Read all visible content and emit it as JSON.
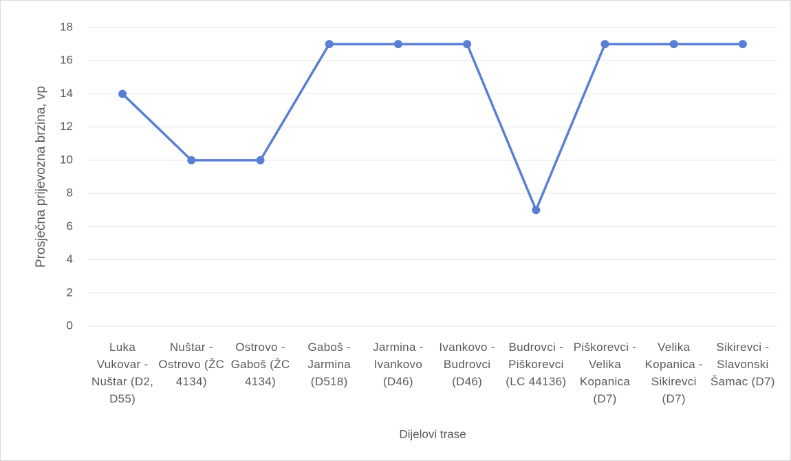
{
  "chart_data": {
    "type": "line",
    "categories": [
      "Luka Vukovar - Nuštar (D2, D55)",
      "Nuštar - Ostrovo (ŽC 4134)",
      "Ostrovo - Gaboš (ŽC 4134)",
      "Gaboš - Jarmina (D518)",
      "Jarmina - Ivankovo (D46)",
      "Ivankovo - Budrovci (D46)",
      "Budrovci - Piškorevci (LC 44136)",
      "Piškorevci - Velika Kopanica (D7)",
      "Velika Kopanica - Sikirevci (D7)",
      "Sikirevci - Slavonski Šamac (D7)"
    ],
    "values": [
      14,
      10,
      10,
      17,
      17,
      17,
      7,
      17,
      17,
      17
    ],
    "color": "#5a7fd2",
    "ylim": [
      0,
      18
    ],
    "yticks": [
      0,
      2,
      4,
      6,
      8,
      10,
      12,
      14,
      16,
      18
    ],
    "grid": true,
    "xlabel": "Dijelovi trase",
    "ylabel": "Prosječna prijevozna brzina, vp"
  }
}
